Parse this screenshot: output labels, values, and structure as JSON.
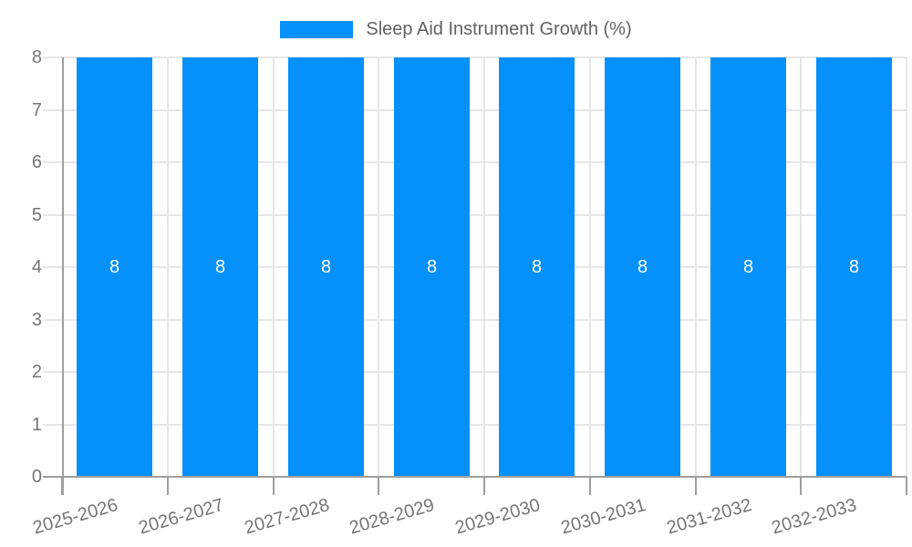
{
  "legend": {
    "label": "Sleep Aid Instrument Growth (%)"
  },
  "chart_data": {
    "type": "bar",
    "title": "",
    "xlabel": "",
    "ylabel": "",
    "categories": [
      "2025-2026",
      "2026-2027",
      "2027-2028",
      "2028-2029",
      "2029-2030",
      "2030-2031",
      "2031-2032",
      "2032-2033"
    ],
    "series": [
      {
        "name": "Sleep Aid Instrument Growth (%)",
        "values": [
          8,
          8,
          8,
          8,
          8,
          8,
          8,
          8
        ]
      }
    ],
    "bar_value_labels": [
      "8",
      "8",
      "8",
      "8",
      "8",
      "8",
      "8",
      "8"
    ],
    "ylim": [
      0,
      8
    ],
    "yticks": [
      0,
      1,
      2,
      3,
      4,
      5,
      6,
      7,
      8
    ],
    "grid": true,
    "legend_position": "top"
  },
  "colors": {
    "bar": "#0590fa",
    "gridline": "#e6e6e6",
    "axis_line": "#9e9e9e",
    "axis_label": "#757575",
    "legend_text": "#616161",
    "bar_value_label": "#ffffff",
    "background": "#ffffff"
  }
}
